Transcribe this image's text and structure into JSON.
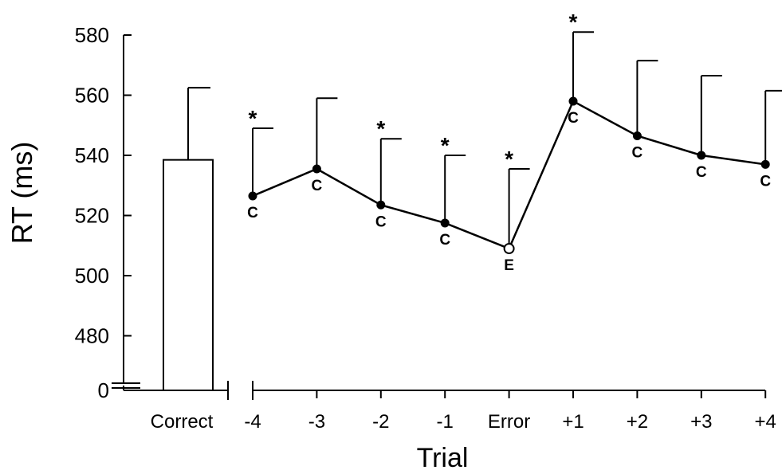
{
  "chart_data": {
    "type": "bar+line",
    "ylabel": "RT (ms)",
    "xlabel": "Trial",
    "y_ticks": [
      "580",
      "560",
      "540",
      "520",
      "500",
      "480",
      "0"
    ],
    "ylim": [
      470,
      580
    ],
    "axis_break": true,
    "bar": {
      "category": "Correct",
      "value": 538.5,
      "error_upper": 562.5
    },
    "series": [
      {
        "categories": [
          "-4",
          "-3",
          "-2",
          "-1",
          "Error",
          "+1",
          "+2",
          "+3",
          "+4"
        ],
        "values": [
          526.5,
          535.5,
          523.5,
          517.5,
          509,
          558,
          546.5,
          540,
          537
        ],
        "error_upper": [
          549,
          559,
          545.5,
          540,
          535.5,
          581,
          571.5,
          566.5,
          561.5
        ],
        "point_labels": [
          "C",
          "C",
          "C",
          "C",
          "E",
          "C",
          "C",
          "C",
          "C"
        ],
        "significance": [
          "*",
          "",
          "*",
          "*",
          "*",
          "*",
          "",
          "",
          ""
        ]
      }
    ]
  }
}
